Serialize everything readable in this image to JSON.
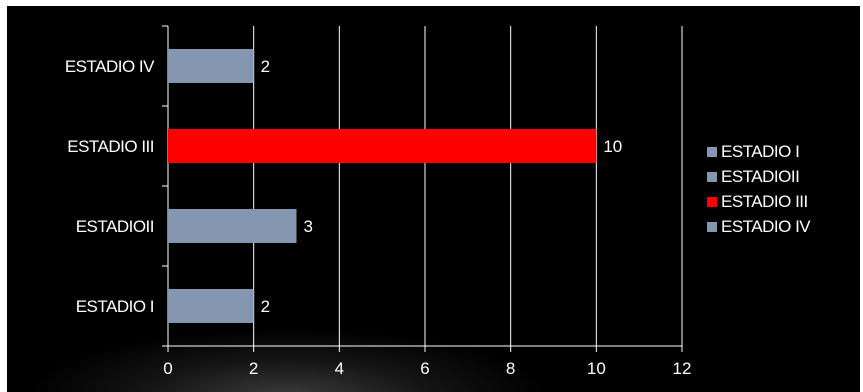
{
  "chart_data": {
    "type": "bar",
    "orientation": "horizontal",
    "categories": [
      "ESTADIO I",
      "ESTADIOII",
      "ESTADIO III",
      "ESTADIO IV"
    ],
    "values": [
      2,
      3,
      10,
      2
    ],
    "colors": [
      "#8496b0",
      "#8496b0",
      "#ff0000",
      "#8496b0"
    ],
    "xlim": [
      0,
      12
    ],
    "xticks": [
      "0",
      "2",
      "4",
      "6",
      "8",
      "10",
      "12"
    ],
    "grid": true,
    "legend": {
      "position": "right",
      "entries": [
        "ESTADIO I",
        "ESTADIOII",
        "ESTADIO III",
        "ESTADIO IV"
      ]
    },
    "background": "#000000",
    "text_color": "#ffffff"
  }
}
